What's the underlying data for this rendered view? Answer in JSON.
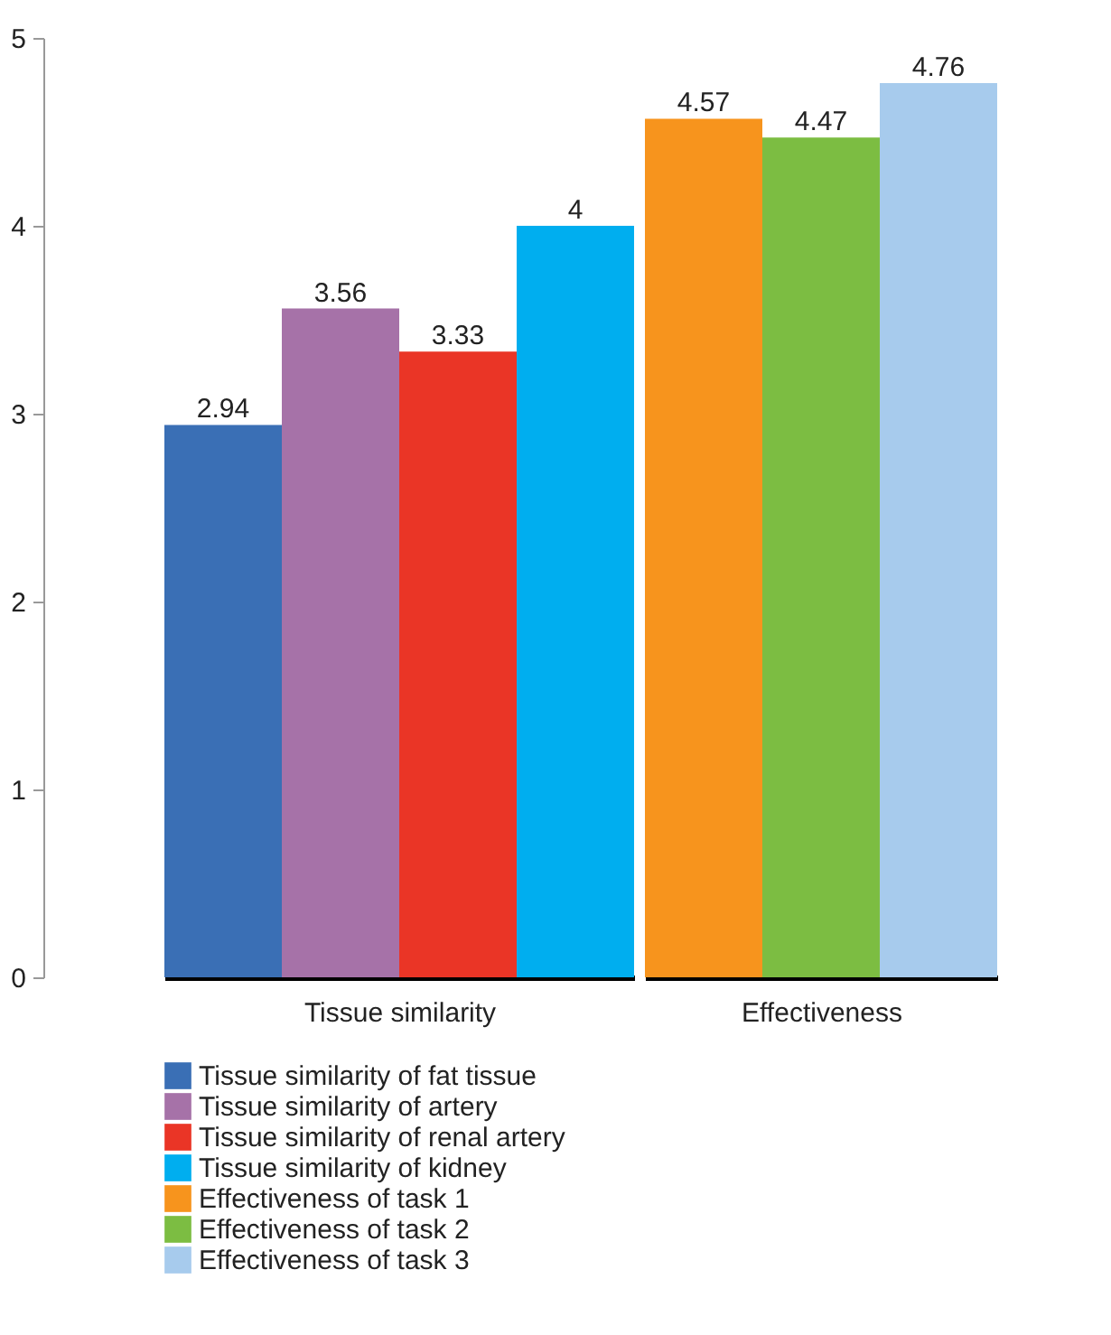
{
  "chart_data": {
    "type": "bar",
    "categories": [
      "Tissue similarity",
      "Effectiveness"
    ],
    "series": [
      {
        "name": "Tissue similarity of fat tissue",
        "color": "#3a6fb5",
        "values": [
          2.94,
          null
        ]
      },
      {
        "name": "Tissue similarity of artery",
        "color": "#a672a8",
        "values": [
          3.56,
          null
        ]
      },
      {
        "name": "Tissue similarity of renal artery",
        "color": "#ea3526",
        "values": [
          3.33,
          null
        ]
      },
      {
        "name": "Tissue similarity of kidney",
        "color": "#00aeef",
        "values": [
          4,
          null
        ]
      },
      {
        "name": "Effectiveness of task 1",
        "color": "#f7941d",
        "values": [
          null,
          4.57
        ]
      },
      {
        "name": "Effectiveness of task 2",
        "color": "#7cbd42",
        "values": [
          null,
          4.47
        ]
      },
      {
        "name": "Effectiveness of task 3",
        "color": "#a7cbed",
        "values": [
          null,
          4.76
        ]
      }
    ],
    "ylim": [
      0,
      5
    ],
    "yticks": [
      0,
      1,
      2,
      3,
      4,
      5
    ],
    "data_labels": true,
    "grid": false,
    "legend": "bottom"
  }
}
